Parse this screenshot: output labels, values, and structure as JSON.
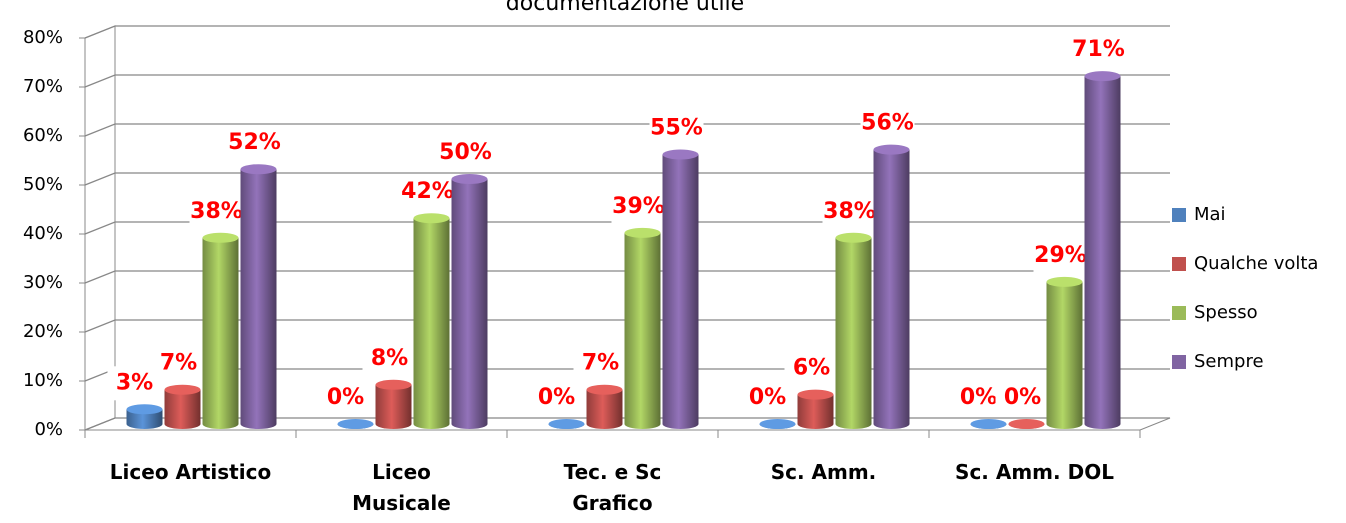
{
  "chart_data": {
    "type": "bar3d",
    "title": "documentazione utile",
    "categories": [
      "Liceo Artistico",
      "Liceo\nMusicale",
      "Tec.  e Sc\nGrafico",
      "Sc. Amm.",
      "Sc. Amm. DOL"
    ],
    "series": [
      {
        "name": "Mai",
        "color": "#4f81bd",
        "values": [
          3,
          0,
          0,
          0,
          0
        ],
        "value_labels": [
          "3%",
          "0%",
          "0%",
          "0%",
          "0%"
        ]
      },
      {
        "name": "Qualche volta",
        "color": "#c0504d",
        "values": [
          7,
          8,
          7,
          6,
          0
        ],
        "value_labels": [
          "7%",
          "8%",
          "7%",
          "6%",
          "0%"
        ]
      },
      {
        "name": "Spesso",
        "color": "#9bbb59",
        "values": [
          38,
          42,
          39,
          38,
          29
        ],
        "value_labels": [
          "38%",
          "42%",
          "39%",
          "38%",
          "29%"
        ]
      },
      {
        "name": "Sempre",
        "color": "#8064a2",
        "values": [
          52,
          50,
          55,
          56,
          71
        ],
        "value_labels": [
          "52%",
          "50%",
          "55%",
          "56%",
          "71%"
        ]
      }
    ],
    "ylim": [
      0,
      80
    ],
    "yticks": [
      {
        "value": 0,
        "label": "0%"
      },
      {
        "value": 10,
        "label": "10%"
      },
      {
        "value": 20,
        "label": "20%"
      },
      {
        "value": 30,
        "label": "30%"
      },
      {
        "value": 40,
        "label": "40%"
      },
      {
        "value": 50,
        "label": "50%"
      },
      {
        "value": 60,
        "label": "60%"
      },
      {
        "value": 70,
        "label": "70%"
      },
      {
        "value": 80,
        "label": "80%"
      }
    ],
    "grid": true,
    "legend": "right"
  }
}
